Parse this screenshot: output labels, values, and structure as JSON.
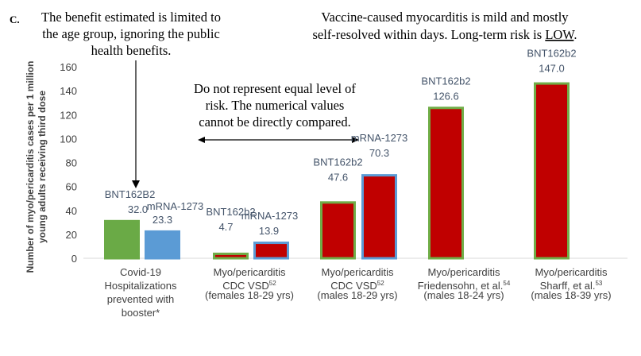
{
  "chart_data": {
    "type": "bar",
    "panel_label": "C.",
    "ylabel_lines": [
      "Number of myo/pericarditis cases per 1 million",
      "young adults receiving third dose"
    ],
    "ylim": [
      0,
      160
    ],
    "yticks": [
      0,
      20,
      40,
      60,
      80,
      100,
      120,
      140,
      160
    ],
    "groups": [
      {
        "label_lines": [
          "Covid-19",
          "Hospitalizations",
          "prevented with",
          "booster*"
        ],
        "superscript": ""
      },
      {
        "label_lines": [
          "Myo/pericarditis",
          "CDC VSD",
          "(females 18-29 yrs)"
        ],
        "superscript": "52"
      },
      {
        "label_lines": [
          "Myo/pericarditis",
          "CDC VSD",
          "(males 18-29 yrs)"
        ],
        "superscript": "52"
      },
      {
        "label_lines": [
          "Myo/pericarditis",
          "Friedensohn, et al.",
          "(males 18-24 yrs)"
        ],
        "superscript": "54"
      },
      {
        "label_lines": [
          "Myo/pericarditis",
          "Sharff, et al.",
          "(males 18-39 yrs)"
        ],
        "superscript": "53"
      }
    ],
    "bars": [
      {
        "group": 0,
        "name": "BNT162B2",
        "value": 32.0,
        "value_label": "32.0",
        "fill": "#6aaa46",
        "stroke": "#6aaa46"
      },
      {
        "group": 0,
        "name": "mRNA-1273",
        "value": 23.3,
        "value_label": "23.3",
        "fill": "#5b9bd5",
        "stroke": "#5b9bd5"
      },
      {
        "group": 1,
        "name": "BNT162b2",
        "value": 4.7,
        "value_label": "4.7",
        "fill": "#c00000",
        "stroke": "#70ad47"
      },
      {
        "group": 1,
        "name": "mRNA-1273",
        "value": 13.9,
        "value_label": "13.9",
        "fill": "#c00000",
        "stroke": "#5b9bd5"
      },
      {
        "group": 2,
        "name": "BNT162b2",
        "value": 47.6,
        "value_label": "47.6",
        "fill": "#c00000",
        "stroke": "#70ad47"
      },
      {
        "group": 2,
        "name": "mRNA-1273",
        "value": 70.3,
        "value_label": "70.3",
        "fill": "#c00000",
        "stroke": "#5b9bd5"
      },
      {
        "group": 3,
        "name": "BNT162b2",
        "value": 126.6,
        "value_label": "126.6",
        "fill": "#c00000",
        "stroke": "#70ad47"
      },
      {
        "group": 4,
        "name": "BNT162b2",
        "value": 147.0,
        "value_label": "147.0",
        "fill": "#c00000",
        "stroke": "#70ad47"
      }
    ],
    "annotations": {
      "benefit_note_lines": [
        "The benefit estimated is limited to",
        "the age group, ignoring the public",
        "health benefits."
      ],
      "mild_note_line1": "Vaccine-caused myocarditis is mild and mostly",
      "mild_note_line2_prefix": "self-resolved within days. Long-term risk is ",
      "mild_note_emphasis": "LOW",
      "mild_note_suffix": ".",
      "risk_note_lines": [
        "Do not represent equal level of",
        "risk. The numerical values",
        "cannot be directly compared."
      ]
    }
  },
  "colors": {
    "axis": "#d9d9d9",
    "text": "#404040",
    "label_text": "#44546a",
    "note_text": "#000000"
  }
}
